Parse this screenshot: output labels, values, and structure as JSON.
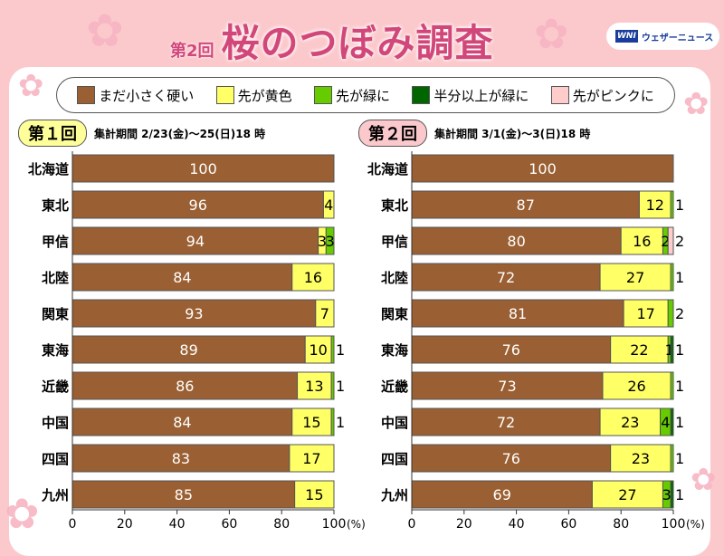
{
  "header": {
    "title_sub": "第2回",
    "title": "桜のつぼみ調査",
    "logo_mark": "WNI",
    "logo_text": "ウェザーニュース"
  },
  "colors": {
    "brown": "#9a5f32",
    "yellow": "#ffff66",
    "green": "#66cc00",
    "dark_green": "#006600",
    "pink": "#ffcccc",
    "title": "#d2477a"
  },
  "chart_data": [
    {
      "type": "bar",
      "orientation": "horizontal",
      "stacked": true,
      "badge": "第１回",
      "period": "集計期間 2/23(金)～25(日)18 時",
      "categories": [
        "北海道",
        "東北",
        "甲信",
        "北陸",
        "関東",
        "東海",
        "近畿",
        "中国",
        "四国",
        "九州"
      ],
      "series": [
        {
          "name": "まだ小さく硬い",
          "values": [
            100,
            96,
            94,
            84,
            93,
            89,
            86,
            84,
            83,
            85
          ]
        },
        {
          "name": "先が黄色",
          "values": [
            0,
            4,
            3,
            16,
            7,
            10,
            13,
            15,
            17,
            15
          ]
        },
        {
          "name": "先が緑に",
          "values": [
            0,
            0,
            3,
            0,
            0,
            1,
            1,
            1,
            0,
            0
          ]
        },
        {
          "name": "半分以上が緑に",
          "values": [
            0,
            0,
            0,
            0,
            0,
            0,
            0,
            0,
            0,
            0
          ]
        },
        {
          "name": "先がピンクに",
          "values": [
            0,
            0,
            0,
            0,
            0,
            0,
            0,
            0,
            0,
            0
          ]
        }
      ],
      "xlim": [
        0,
        100
      ],
      "xticks": [
        "0",
        "20",
        "40",
        "60",
        "80",
        "100"
      ],
      "xunit": "(%)"
    },
    {
      "type": "bar",
      "orientation": "horizontal",
      "stacked": true,
      "badge": "第２回",
      "period": "集計期間 3/1(金)～3(日)18 時",
      "categories": [
        "北海道",
        "東北",
        "甲信",
        "北陸",
        "関東",
        "東海",
        "近畿",
        "中国",
        "四国",
        "九州"
      ],
      "series": [
        {
          "name": "まだ小さく硬い",
          "values": [
            100,
            87,
            80,
            72,
            81,
            76,
            73,
            72,
            76,
            69
          ]
        },
        {
          "name": "先が黄色",
          "values": [
            0,
            12,
            16,
            27,
            17,
            22,
            26,
            23,
            23,
            27
          ]
        },
        {
          "name": "先が緑に",
          "values": [
            0,
            1,
            2,
            1,
            2,
            1,
            1,
            4,
            1,
            3
          ]
        },
        {
          "name": "半分以上が緑に",
          "values": [
            0,
            0,
            0,
            0,
            0,
            1,
            0,
            1,
            0,
            1
          ]
        },
        {
          "name": "先がピンクに",
          "values": [
            0,
            0,
            2,
            0,
            0,
            0,
            0,
            0,
            0,
            0
          ]
        }
      ],
      "xlim": [
        0,
        100
      ],
      "xticks": [
        "0",
        "20",
        "40",
        "60",
        "80",
        "100"
      ],
      "xunit": "(%)"
    }
  ],
  "legend": [
    "まだ小さく硬い",
    "先が黄色",
    "先が緑に",
    "半分以上が緑に",
    "先がピンクに"
  ]
}
